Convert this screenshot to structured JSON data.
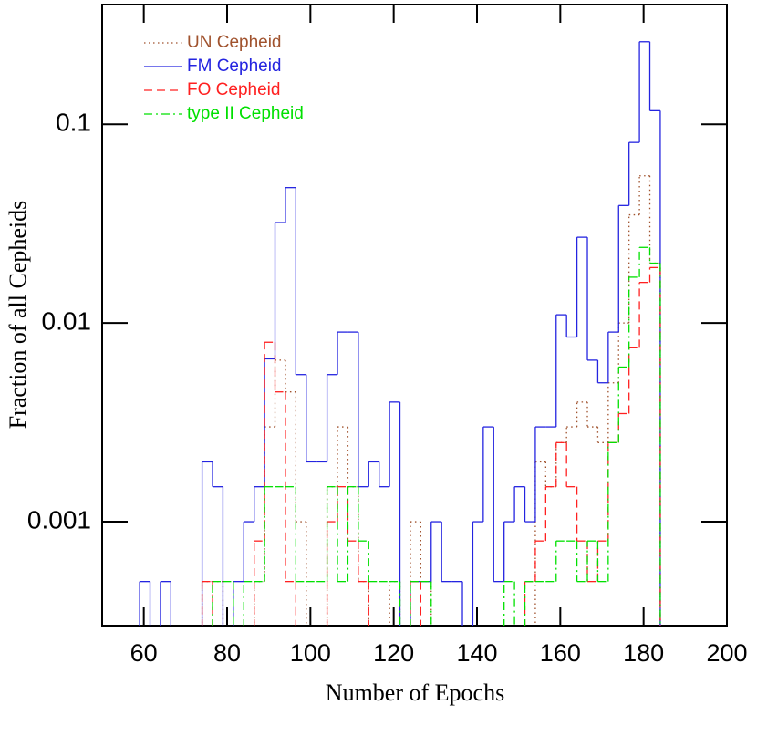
{
  "chart_data": {
    "type": "histogram",
    "xlabel": "Number of Epochs",
    "ylabel": "Fraction of all Cepheids",
    "bins": [
      59,
      61.5,
      64,
      66.5,
      69,
      71.5,
      74,
      76.5,
      79,
      81.5,
      84,
      86.5,
      89,
      91.5,
      94,
      96.5,
      99,
      101.5,
      104,
      106.5,
      109,
      111.5,
      114,
      116.5,
      119,
      121.5,
      124,
      126.5,
      129,
      131.5,
      134,
      136.5,
      139,
      141.5,
      144,
      146.5,
      149,
      151.5,
      154,
      156.5,
      159,
      161.5,
      164,
      166.5,
      169,
      171.5,
      174,
      176.5,
      179,
      181.5,
      184
    ],
    "series": [
      {
        "name": "UN Cepheid",
        "color": "#a0522d",
        "style": "dotted",
        "values": [
          0,
          0,
          0,
          0,
          0,
          0,
          0.0005,
          0.0005,
          0,
          0,
          0,
          0.0005,
          0.003,
          0.0065,
          0.0045,
          0.001,
          0,
          0,
          0.0015,
          0.003,
          0.0015,
          0.0005,
          0,
          0,
          0.0005,
          0,
          0.001,
          0.0005,
          0,
          0,
          0,
          0,
          0,
          0,
          0,
          0,
          0,
          0,
          0.002,
          0.0015,
          0.0025,
          0.003,
          0.004,
          0.003,
          0.0025,
          0.005,
          0.01,
          0.035,
          0.055,
          0.02
        ]
      },
      {
        "name": "FM Cepheid",
        "color": "#2424e0",
        "style": "solid",
        "values": [
          0.0005,
          0,
          0.0005,
          0,
          0,
          0,
          0.002,
          0.0015,
          0,
          0.0005,
          0.001,
          0.0015,
          0.0066,
          0.032,
          0.048,
          0.0055,
          0.002,
          0.002,
          0.0055,
          0.009,
          0.009,
          0.0015,
          0.002,
          0.0015,
          0.004,
          0,
          0.0005,
          0.0005,
          0.001,
          0.0005,
          0.0005,
          0,
          0.001,
          0.003,
          0.0005,
          0.001,
          0.0015,
          0.001,
          0.003,
          0.003,
          0.011,
          0.0085,
          0.027,
          0.0065,
          0.005,
          0.009,
          0.039,
          0.081,
          0.26,
          0.117
        ]
      },
      {
        "name": "FO Cepheid",
        "color": "#ff2020",
        "style": "dashed",
        "values": [
          0,
          0,
          0,
          0,
          0,
          0,
          0.0005,
          0,
          0,
          0,
          0,
          0.0008,
          0.008,
          0.0045,
          0.0005,
          0,
          0,
          0,
          0.001,
          0.0015,
          0.0008,
          0.0005,
          0,
          0,
          0,
          0,
          0.0005,
          0,
          0,
          0,
          0,
          0,
          0,
          0,
          0,
          0,
          0,
          0.0005,
          0.0008,
          0.0015,
          0.0025,
          0.0015,
          0.0008,
          0.0005,
          0.0008,
          0.0025,
          0.0035,
          0.0075,
          0.016,
          0.019
        ]
      },
      {
        "name": "type II Cepheid",
        "color": "#00e000",
        "style": "dashdot",
        "values": [
          0,
          0,
          0,
          0,
          0,
          0,
          0,
          0.0005,
          0.0005,
          0,
          0.0005,
          0.0005,
          0.0015,
          0.0015,
          0.0015,
          0.0005,
          0.0005,
          0.0005,
          0.0015,
          0.0005,
          0.0015,
          0.0008,
          0.0005,
          0.0005,
          0.0005,
          0,
          0.0005,
          0.0005,
          0,
          0,
          0,
          0,
          0,
          0,
          0,
          0.0005,
          0,
          0.0005,
          0.0005,
          0.0005,
          0.0008,
          0.0008,
          0.0005,
          0.0008,
          0.0005,
          0.0025,
          0.006,
          0.017,
          0.024,
          0.02
        ]
      }
    ],
    "xlim": [
      50,
      200
    ],
    "ylim": [
      0.0003,
      0.4
    ],
    "xticks": [
      60,
      80,
      100,
      120,
      140,
      160,
      180,
      200
    ],
    "yticks": [
      0.001,
      0.01,
      0.1
    ],
    "log_y": true,
    "legend": "upper left"
  }
}
